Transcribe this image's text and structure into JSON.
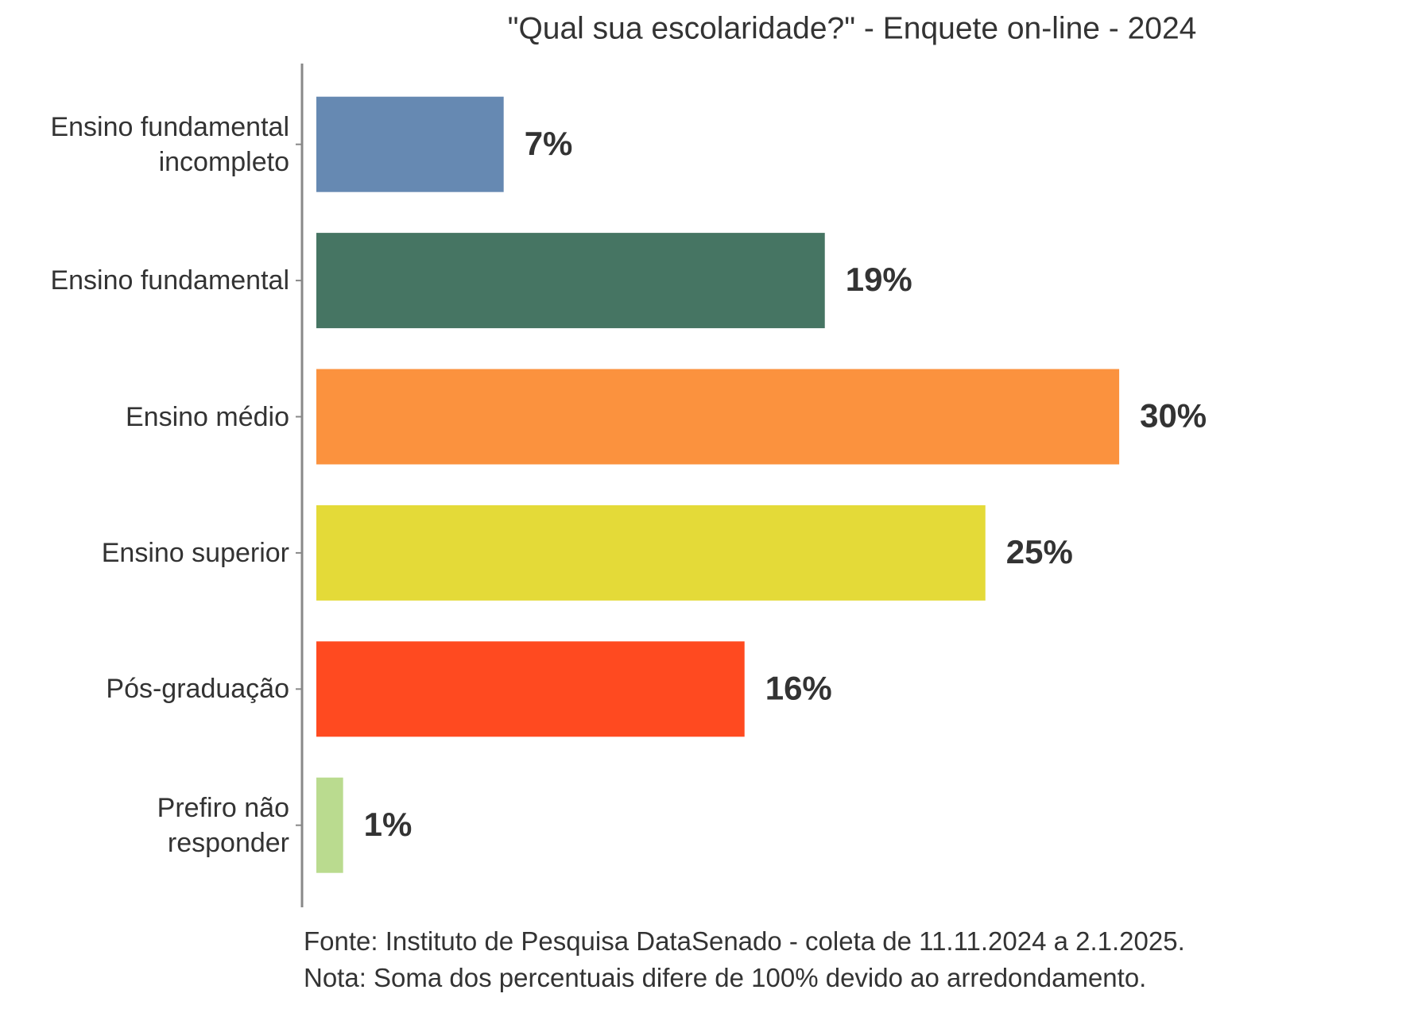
{
  "chart_data": {
    "type": "bar",
    "orientation": "horizontal",
    "title": "\"Qual sua escolaridade?\" - Enquete on-line - 2024",
    "categories": [
      "Ensino fundamental incompleto",
      "Ensino fundamental",
      "Ensino médio",
      "Ensino superior",
      "Pós-graduação",
      "Prefiro não responder"
    ],
    "values": [
      7,
      19,
      30,
      25,
      16,
      1
    ],
    "value_labels": [
      "7%",
      "19%",
      "30%",
      "25%",
      "16%",
      "1%"
    ],
    "colors": [
      "#6689b2",
      "#467563",
      "#fb923e",
      "#e4da38",
      "#ff4a20",
      "#badb8f"
    ],
    "source": "Fonte: Instituto de Pesquisa DataSenado - coleta de 11.11.2024 a 2.1.2025.",
    "note": "Nota: Soma dos percentuais difere de 100% devido ao arredondamento."
  }
}
